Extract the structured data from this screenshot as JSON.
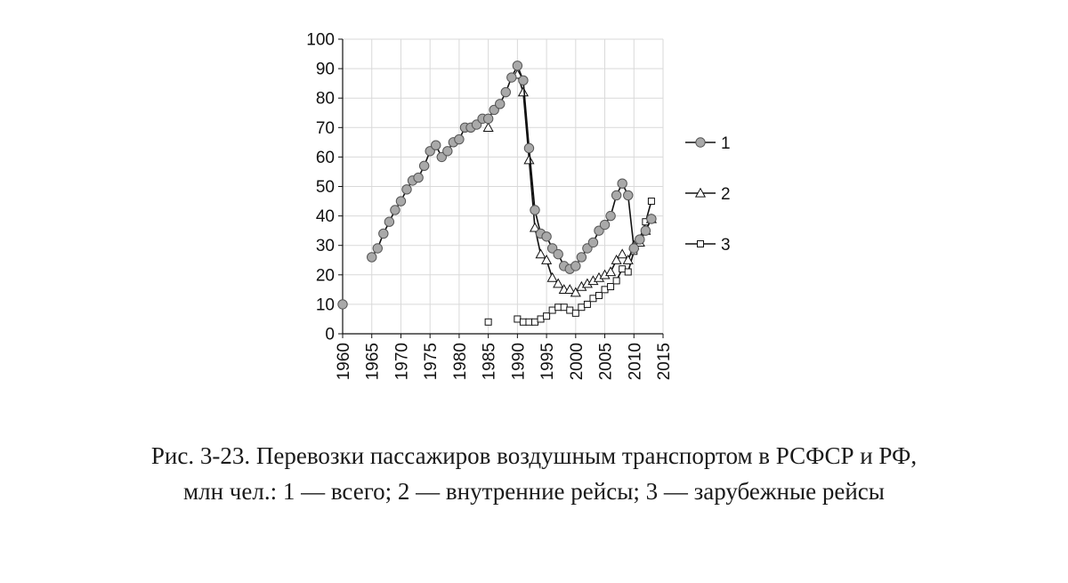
{
  "chart_data": {
    "type": "line",
    "title": "",
    "xlabel": "",
    "ylabel": "",
    "xlim": [
      1960,
      2015
    ],
    "ylim": [
      0,
      100
    ],
    "x_ticks": [
      "1960",
      "1965",
      "1970",
      "1975",
      "1980",
      "1985",
      "1990",
      "1995",
      "2000",
      "2005",
      "2010",
      "2015"
    ],
    "y_ticks": [
      "0",
      "10",
      "20",
      "30",
      "40",
      "50",
      "60",
      "70",
      "80",
      "90",
      "100"
    ],
    "grid": true,
    "legend_position": "right",
    "series": [
      {
        "name": "1",
        "marker": "circle",
        "points": [
          [
            1960,
            10
          ],
          [
            1965,
            26
          ],
          [
            1966,
            29
          ],
          [
            1967,
            34
          ],
          [
            1968,
            38
          ],
          [
            1969,
            42
          ],
          [
            1970,
            45
          ],
          [
            1971,
            49
          ],
          [
            1972,
            52
          ],
          [
            1973,
            53
          ],
          [
            1974,
            57
          ],
          [
            1975,
            62
          ],
          [
            1976,
            64
          ],
          [
            1977,
            60
          ],
          [
            1978,
            62
          ],
          [
            1979,
            65
          ],
          [
            1980,
            66
          ],
          [
            1981,
            70
          ],
          [
            1982,
            70
          ],
          [
            1983,
            71
          ],
          [
            1984,
            73
          ],
          [
            1985,
            73
          ],
          [
            1986,
            76
          ],
          [
            1987,
            78
          ],
          [
            1988,
            82
          ],
          [
            1989,
            87
          ],
          [
            1990,
            91
          ],
          [
            1991,
            86
          ],
          [
            1992,
            63
          ],
          [
            1993,
            42
          ],
          [
            1994,
            34
          ],
          [
            1995,
            33
          ],
          [
            1996,
            29
          ],
          [
            1997,
            27
          ],
          [
            1998,
            23
          ],
          [
            1999,
            22
          ],
          [
            2000,
            23
          ],
          [
            2001,
            26
          ],
          [
            2002,
            29
          ],
          [
            2003,
            31
          ],
          [
            2004,
            35
          ],
          [
            2005,
            37
          ],
          [
            2006,
            40
          ],
          [
            2007,
            47
          ],
          [
            2008,
            51
          ],
          [
            2009,
            47
          ],
          [
            2010,
            29
          ],
          [
            2011,
            32
          ],
          [
            2012,
            35
          ],
          [
            2013,
            39
          ]
        ]
      },
      {
        "name": "2",
        "marker": "triangle",
        "points": [
          [
            1985,
            70
          ],
          [
            1990,
            88
          ],
          [
            1991,
            82
          ],
          [
            1992,
            59
          ],
          [
            1993,
            36
          ],
          [
            1994,
            27
          ],
          [
            1995,
            25
          ],
          [
            1996,
            19
          ],
          [
            1997,
            17
          ],
          [
            1998,
            15
          ],
          [
            1999,
            15
          ],
          [
            2000,
            14
          ],
          [
            2001,
            16
          ],
          [
            2002,
            17
          ],
          [
            2003,
            18
          ],
          [
            2004,
            19
          ],
          [
            2005,
            20
          ],
          [
            2006,
            21
          ],
          [
            2007,
            25
          ],
          [
            2008,
            27
          ],
          [
            2009,
            25
          ],
          [
            2010,
            30
          ],
          [
            2011,
            31
          ],
          [
            2012,
            35
          ],
          [
            2013,
            39
          ]
        ]
      },
      {
        "name": "3",
        "marker": "square",
        "points": [
          [
            1985,
            4
          ],
          [
            1990,
            5
          ],
          [
            1991,
            4
          ],
          [
            1992,
            4
          ],
          [
            1993,
            4
          ],
          [
            1994,
            5
          ],
          [
            1995,
            6
          ],
          [
            1996,
            8
          ],
          [
            1997,
            9
          ],
          [
            1998,
            9
          ],
          [
            1999,
            8
          ],
          [
            2000,
            7
          ],
          [
            2001,
            9
          ],
          [
            2002,
            10
          ],
          [
            2003,
            12
          ],
          [
            2004,
            13
          ],
          [
            2005,
            15
          ],
          [
            2006,
            16
          ],
          [
            2007,
            18
          ],
          [
            2008,
            22
          ],
          [
            2009,
            21
          ],
          [
            2010,
            28
          ],
          [
            2011,
            32
          ],
          [
            2012,
            38
          ],
          [
            2013,
            45
          ]
        ]
      }
    ]
  },
  "caption": {
    "line1": "Рис. 3-23. Перевозки пассажиров воздушным транспортом в РСФСР и РФ,",
    "line2": "млн чел.: 1 — всего; 2 — внутренние рейсы; 3 — зарубежные рейсы"
  },
  "colors": {
    "line": "#111111",
    "grid": "#d9d9d9",
    "circle_fill": "#a9a9a9",
    "marker_stroke": "#555555",
    "open_fill": "#ffffff"
  }
}
